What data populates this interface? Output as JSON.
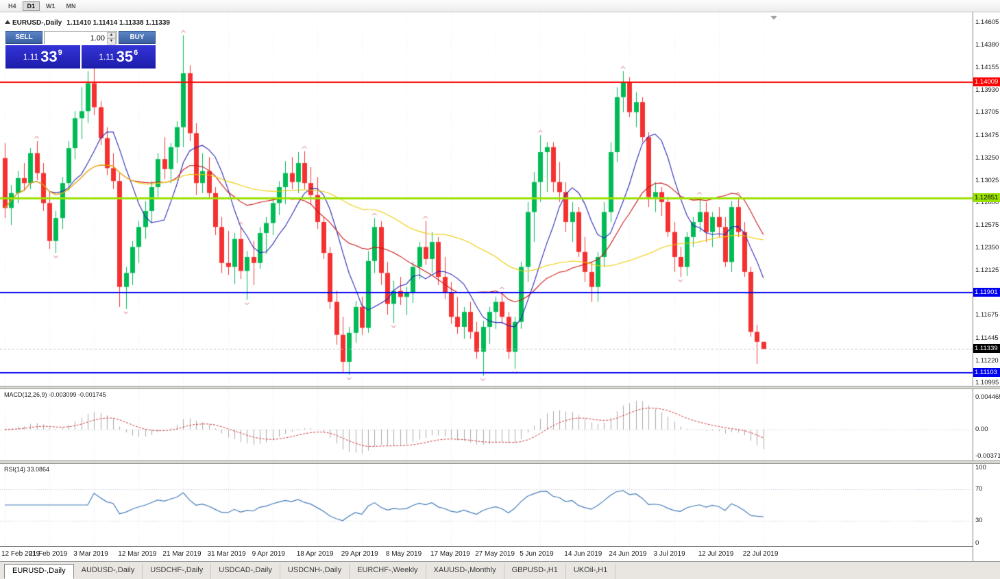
{
  "toolbar": {
    "timeframes": [
      {
        "label": "H4",
        "active": false
      },
      {
        "label": "D1",
        "active": true
      },
      {
        "label": "W1",
        "active": false
      },
      {
        "label": "MN",
        "active": false
      }
    ]
  },
  "chart_header": {
    "symbol": "EURUSD-,Daily",
    "ohlc": "1.11410 1.11414 1.11338 1.11339"
  },
  "trade_panel": {
    "sell_label": "SELL",
    "buy_label": "BUY",
    "volume": "1.00",
    "sell_price": {
      "small": "1.11",
      "big": "33",
      "sup": "9"
    },
    "buy_price": {
      "small": "1.11",
      "big": "35",
      "sup": "6"
    }
  },
  "indicators": {
    "macd_label": "MACD(12,26,9) -0.003099 -0.001745",
    "rsi_label": "RSI(14) 33.0864"
  },
  "tabs": [
    {
      "label": "EURUSD-,Daily",
      "active": true
    },
    {
      "label": "AUDUSD-,Daily",
      "active": false
    },
    {
      "label": "USDCHF-,Daily",
      "active": false
    },
    {
      "label": "USDCAD-,Daily",
      "active": false
    },
    {
      "label": "USDCNH-,Daily",
      "active": false
    },
    {
      "label": "EURCHF-,Weekly",
      "active": false
    },
    {
      "label": "XAUUSD-,Monthly",
      "active": false
    },
    {
      "label": "GBPUSD-,H1",
      "active": false
    },
    {
      "label": "UKOil-,H1",
      "active": false
    }
  ],
  "chart_data": {
    "type": "candlestick",
    "symbol": "EURUSD-",
    "timeframe": "Daily",
    "y_range": [
      1.1097,
      1.1471
    ],
    "candle_up": "#00bb55",
    "candle_down": "#f53030",
    "price_ticks": [
      "1.14605",
      "1.14380",
      "1.14155",
      "1.13930",
      "1.13705",
      "1.13475",
      "1.13250",
      "1.13025",
      "1.12800",
      "1.12575",
      "1.12350",
      "1.12125",
      "1.11675",
      "1.11445",
      "1.11220",
      "1.10995"
    ],
    "hlines": [
      {
        "value": 1.14009,
        "label": "1.14009",
        "color": "#ff0000",
        "text": "#ffffff",
        "width": 2
      },
      {
        "value": 1.12851,
        "label": "1.12851",
        "color": "#9be100",
        "text": "#000000",
        "width": 3
      },
      {
        "value": 1.11901,
        "label": "1.11901",
        "color": "#0000f0",
        "text": "#ffffff",
        "width": 2
      },
      {
        "value": 1.11103,
        "label": "1.11103",
        "color": "#0000f0",
        "text": "#ffffff",
        "width": 2
      }
    ],
    "current_price": {
      "value": 1.11339,
      "label": "1.11339",
      "bg": "#000000",
      "text": "#ffffff"
    },
    "moving_averages": [
      {
        "period": 8,
        "color": "#2222b8"
      },
      {
        "period": 21,
        "color": "#cc1111"
      },
      {
        "period": 50,
        "color": "#eecb00"
      }
    ],
    "macd": {
      "params": "12,26,9",
      "current": "-0.003099 -0.001745",
      "range": [
        -0.0043,
        0.0056
      ],
      "ticks": [
        {
          "v": 0.004465,
          "label": "0.004465"
        },
        {
          "v": 0,
          "label": "0.00"
        },
        {
          "v": -0.00371,
          "label": "-0.00371"
        }
      ],
      "hist_color": "#aaaaaa",
      "signal_color": "#cc3333"
    },
    "rsi": {
      "period": 14,
      "current": "33.0864",
      "levels": [
        30,
        70
      ],
      "ticks": [
        {
          "v": 100,
          "label": "100"
        },
        {
          "v": 70,
          "label": "70"
        },
        {
          "v": 30,
          "label": "30"
        },
        {
          "v": 0,
          "label": "0"
        }
      ],
      "line_color": "#4079b8",
      "level_color": "#b9c2d8"
    },
    "x_labels": [
      "12 Feb 2019",
      "21 Feb 2019",
      "3 Mar 2019",
      "12 Mar 2019",
      "21 Mar 2019",
      "31 Mar 2019",
      "9 Apr 2019",
      "18 Apr 2019",
      "29 Apr 2019",
      "8 May 2019",
      "17 May 2019",
      "27 May 2019",
      "5 Jun 2019",
      "14 Jun 2019",
      "24 Jun 2019",
      "3 Jul 2019",
      "12 Jul 2019",
      "22 Jul 2019"
    ],
    "ohlc": [
      [
        1.1325,
        1.134,
        1.1265,
        1.1275
      ],
      [
        1.1275,
        1.1298,
        1.1258,
        1.129
      ],
      [
        1.129,
        1.1312,
        1.128,
        1.1305
      ],
      [
        1.1305,
        1.132,
        1.1292,
        1.13
      ],
      [
        1.13,
        1.1335,
        1.1294,
        1.133
      ],
      [
        1.133,
        1.1342,
        1.1303,
        1.131
      ],
      [
        1.131,
        1.132,
        1.1272,
        1.128
      ],
      [
        1.128,
        1.1292,
        1.1234,
        1.1242
      ],
      [
        1.1242,
        1.1272,
        1.123,
        1.1265
      ],
      [
        1.1265,
        1.1306,
        1.1254,
        1.13
      ],
      [
        1.13,
        1.1342,
        1.1292,
        1.1335
      ],
      [
        1.1335,
        1.1372,
        1.1324,
        1.1365
      ],
      [
        1.1365,
        1.1396,
        1.1344,
        1.1372
      ],
      [
        1.1372,
        1.1412,
        1.136,
        1.14
      ],
      [
        1.14,
        1.1419,
        1.1368,
        1.1376
      ],
      [
        1.1376,
        1.1382,
        1.1338,
        1.1345
      ],
      [
        1.1345,
        1.1356,
        1.1308,
        1.1315
      ],
      [
        1.1315,
        1.133,
        1.1294,
        1.1302
      ],
      [
        1.1302,
        1.131,
        1.1176,
        1.1196
      ],
      [
        1.1196,
        1.1216,
        1.1174,
        1.121
      ],
      [
        1.121,
        1.1242,
        1.1198,
        1.1236
      ],
      [
        1.1236,
        1.1262,
        1.122,
        1.1256
      ],
      [
        1.1256,
        1.1282,
        1.1244,
        1.1272
      ],
      [
        1.1272,
        1.1302,
        1.126,
        1.1296
      ],
      [
        1.1296,
        1.133,
        1.1286,
        1.1324
      ],
      [
        1.1324,
        1.1346,
        1.1304,
        1.1314
      ],
      [
        1.1314,
        1.134,
        1.13,
        1.1336
      ],
      [
        1.1336,
        1.1362,
        1.132,
        1.1356
      ],
      [
        1.1356,
        1.1448,
        1.1336,
        1.141
      ],
      [
        1.141,
        1.1418,
        1.1342,
        1.135
      ],
      [
        1.135,
        1.136,
        1.1288,
        1.13
      ],
      [
        1.13,
        1.133,
        1.129,
        1.1312
      ],
      [
        1.1312,
        1.1326,
        1.1284,
        1.129
      ],
      [
        1.129,
        1.1296,
        1.1248,
        1.1256
      ],
      [
        1.1256,
        1.1266,
        1.121,
        1.122
      ],
      [
        1.122,
        1.1252,
        1.1208,
        1.1216
      ],
      [
        1.1216,
        1.125,
        1.1199,
        1.1244
      ],
      [
        1.1244,
        1.1256,
        1.1204,
        1.1212
      ],
      [
        1.1212,
        1.1232,
        1.1183,
        1.1226
      ],
      [
        1.1226,
        1.1242,
        1.1198,
        1.122
      ],
      [
        1.122,
        1.1256,
        1.1214,
        1.125
      ],
      [
        1.125,
        1.1266,
        1.1229,
        1.126
      ],
      [
        1.126,
        1.1286,
        1.1248,
        1.128
      ],
      [
        1.128,
        1.1302,
        1.1268,
        1.1296
      ],
      [
        1.1296,
        1.1322,
        1.1279,
        1.131
      ],
      [
        1.131,
        1.1326,
        1.1294,
        1.1301
      ],
      [
        1.1301,
        1.1331,
        1.129,
        1.132
      ],
      [
        1.132,
        1.1332,
        1.1294,
        1.13
      ],
      [
        1.13,
        1.1316,
        1.1278,
        1.1288
      ],
      [
        1.1288,
        1.1306,
        1.1254,
        1.1261
      ],
      [
        1.1261,
        1.1266,
        1.1224,
        1.123
      ],
      [
        1.123,
        1.1236,
        1.1174,
        1.1181
      ],
      [
        1.1181,
        1.1192,
        1.1138,
        1.1148
      ],
      [
        1.1148,
        1.1166,
        1.1111,
        1.1121
      ],
      [
        1.1121,
        1.1156,
        1.1108,
        1.115
      ],
      [
        1.115,
        1.1182,
        1.114,
        1.1176
      ],
      [
        1.1176,
        1.1186,
        1.1148,
        1.1155
      ],
      [
        1.1155,
        1.1232,
        1.115,
        1.1222
      ],
      [
        1.1222,
        1.1265,
        1.121,
        1.1256
      ],
      [
        1.1256,
        1.1262,
        1.1198,
        1.121
      ],
      [
        1.121,
        1.1221,
        1.1168,
        1.1179
      ],
      [
        1.1179,
        1.1202,
        1.116,
        1.1192
      ],
      [
        1.1192,
        1.1206,
        1.1178,
        1.1186
      ],
      [
        1.1186,
        1.1196,
        1.1168,
        1.119
      ],
      [
        1.119,
        1.1221,
        1.118,
        1.1216
      ],
      [
        1.1216,
        1.1241,
        1.1204,
        1.1236
      ],
      [
        1.1236,
        1.1262,
        1.1218,
        1.1224
      ],
      [
        1.1224,
        1.1251,
        1.121,
        1.1241
      ],
      [
        1.1241,
        1.1246,
        1.1198,
        1.1206
      ],
      [
        1.1206,
        1.1226,
        1.1184,
        1.1191
      ],
      [
        1.1191,
        1.1201,
        1.1159,
        1.1166
      ],
      [
        1.1166,
        1.1186,
        1.1149,
        1.1156
      ],
      [
        1.1156,
        1.1176,
        1.1144,
        1.1171
      ],
      [
        1.1171,
        1.1181,
        1.1144,
        1.1151
      ],
      [
        1.1151,
        1.1161,
        1.1124,
        1.1131
      ],
      [
        1.1131,
        1.1162,
        1.1107,
        1.1156
      ],
      [
        1.1156,
        1.1176,
        1.1139,
        1.1171
      ],
      [
        1.1171,
        1.1186,
        1.1154,
        1.1181
      ],
      [
        1.1181,
        1.1191,
        1.1159,
        1.1166
      ],
      [
        1.1166,
        1.1171,
        1.1124,
        1.1131
      ],
      [
        1.1131,
        1.1166,
        1.1114,
        1.1161
      ],
      [
        1.1161,
        1.1221,
        1.1154,
        1.1216
      ],
      [
        1.1216,
        1.1281,
        1.1201,
        1.1271
      ],
      [
        1.1271,
        1.1311,
        1.1241,
        1.1301
      ],
      [
        1.1301,
        1.1348,
        1.1281,
        1.1331
      ],
      [
        1.1331,
        1.1341,
        1.1291,
        1.1336
      ],
      [
        1.1336,
        1.1341,
        1.1291,
        1.1301
      ],
      [
        1.1301,
        1.1321,
        1.1281,
        1.1291
      ],
      [
        1.1291,
        1.1301,
        1.1251,
        1.1261
      ],
      [
        1.1261,
        1.1281,
        1.1241,
        1.1271
      ],
      [
        1.1271,
        1.1276,
        1.1226,
        1.1231
      ],
      [
        1.1231,
        1.1246,
        1.1201,
        1.1211
      ],
      [
        1.1211,
        1.1221,
        1.1181,
        1.1196
      ],
      [
        1.1196,
        1.1231,
        1.1181,
        1.1226
      ],
      [
        1.1226,
        1.1281,
        1.1216,
        1.1271
      ],
      [
        1.1271,
        1.1341,
        1.1261,
        1.1331
      ],
      [
        1.1331,
        1.1396,
        1.1321,
        1.1386
      ],
      [
        1.1386,
        1.1412,
        1.1371,
        1.1401
      ],
      [
        1.1401,
        1.1406,
        1.1366,
        1.1371
      ],
      [
        1.1371,
        1.1391,
        1.1356,
        1.1381
      ],
      [
        1.1381,
        1.1386,
        1.1341,
        1.1346
      ],
      [
        1.1346,
        1.1351,
        1.1276,
        1.1286
      ],
      [
        1.1286,
        1.1301,
        1.1271,
        1.1291
      ],
      [
        1.1291,
        1.1296,
        1.1267,
        1.1281
      ],
      [
        1.1281,
        1.1286,
        1.1246,
        1.1251
      ],
      [
        1.1251,
        1.1261,
        1.1211,
        1.1226
      ],
      [
        1.1226,
        1.1236,
        1.1206,
        1.1216
      ],
      [
        1.1216,
        1.1251,
        1.1207,
        1.1246
      ],
      [
        1.1246,
        1.1266,
        1.1236,
        1.1261
      ],
      [
        1.1261,
        1.1286,
        1.1251,
        1.1271
      ],
      [
        1.1271,
        1.1281,
        1.1241,
        1.1251
      ],
      [
        1.1251,
        1.1271,
        1.1236,
        1.1266
      ],
      [
        1.1266,
        1.1276,
        1.1246,
        1.1256
      ],
      [
        1.1256,
        1.1266,
        1.1216,
        1.1221
      ],
      [
        1.1221,
        1.1282,
        1.1211,
        1.1276
      ],
      [
        1.1276,
        1.1286,
        1.1246,
        1.1251
      ],
      [
        1.1251,
        1.1261,
        1.1206,
        1.1211
      ],
      [
        1.1211,
        1.1216,
        1.1146,
        1.1151
      ],
      [
        1.1151,
        1.1158,
        1.1119,
        1.1141
      ],
      [
        1.1141,
        1.11414,
        1.11338,
        1.11339
      ]
    ]
  }
}
